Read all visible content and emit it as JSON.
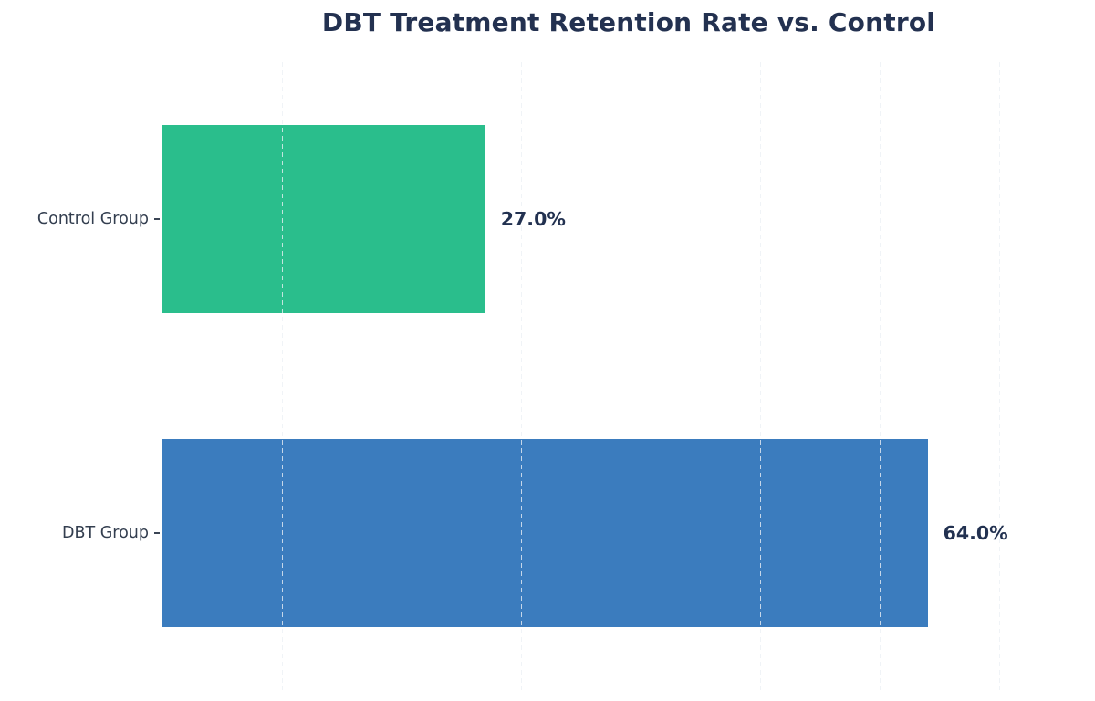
{
  "page": {
    "background": "#ffffff"
  },
  "chart_data": {
    "type": "bar",
    "orientation": "horizontal",
    "title": "DBT Treatment Retention Rate vs. Control",
    "categories": [
      "Control Group",
      "DBT Group"
    ],
    "values": [
      27.0,
      64.0
    ],
    "value_labels": [
      "27.0%",
      "64.0%"
    ],
    "bar_colors": [
      "#2abe8c",
      "#3b7cbe"
    ],
    "xlim": [
      0,
      78
    ],
    "xlabel": "",
    "ylabel": "",
    "grid": {
      "show": true,
      "step": 10,
      "style": "dashed",
      "axis": "x"
    },
    "legend": "none",
    "bar_fraction": 0.6,
    "title_color": "#233150",
    "category_label_color": "#333e4f",
    "value_label_color": "#223150",
    "axis_line_color": "#dbe1e9"
  }
}
